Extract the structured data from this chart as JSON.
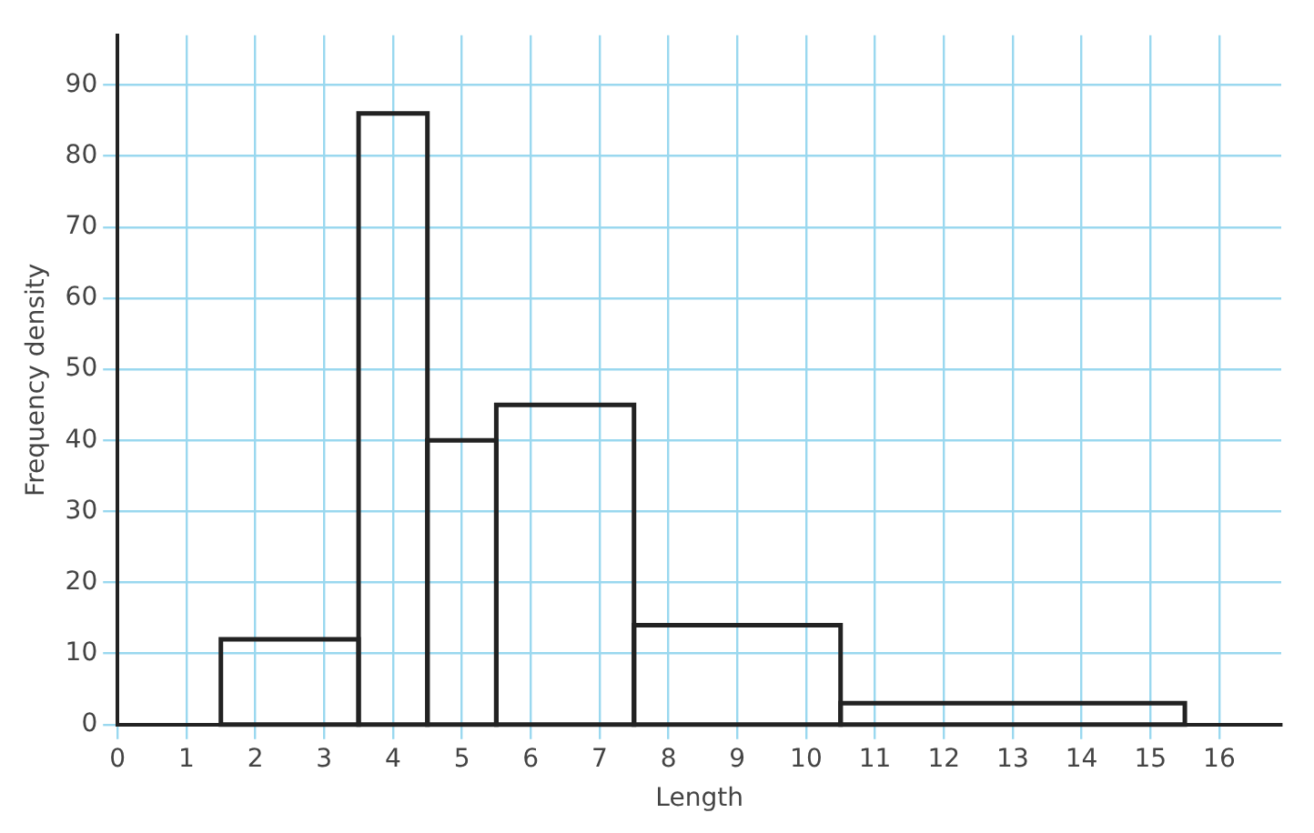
{
  "chart_data": {
    "type": "histogram",
    "xlabel": "Length",
    "ylabel": "Frequency density",
    "bins": [
      1.5,
      3.5,
      4.5,
      5.5,
      7.5,
      10.5,
      15.5
    ],
    "values": [
      12,
      86,
      40,
      45,
      14,
      3
    ],
    "color": "#222222",
    "xlim": [
      0,
      16.9
    ],
    "xticks": [
      0,
      1,
      2,
      3,
      4,
      5,
      6,
      7,
      8,
      9,
      10,
      11,
      12,
      13,
      14,
      15,
      16
    ],
    "ylim": [
      0,
      97
    ],
    "yticks": [
      0,
      10,
      20,
      30,
      40,
      50,
      60,
      70,
      80,
      90
    ],
    "grid": true
  }
}
